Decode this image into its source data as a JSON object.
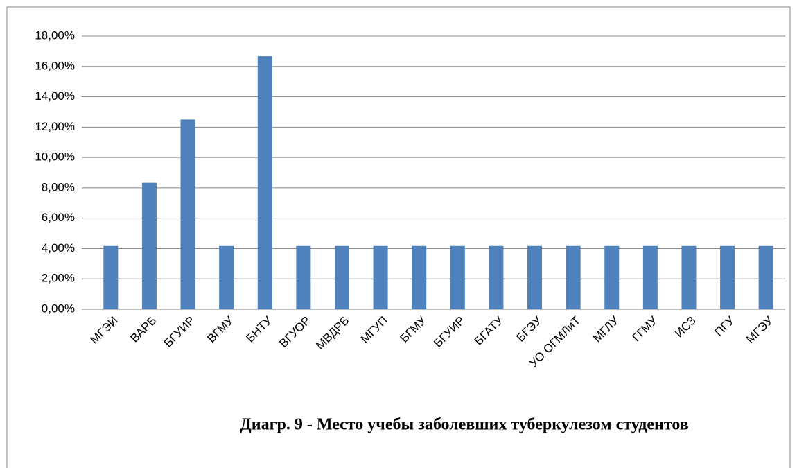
{
  "chart_data": {
    "type": "bar",
    "title": "Диагр. 9 - Место учебы заболевших туберкулезом студентов",
    "categories": [
      "МГЭИ",
      "ВАРБ",
      "БГУИР",
      "ВГМУ",
      "БНТУ",
      "ВГУОР",
      "МВДРБ",
      "МГУП",
      "БГМУ",
      "БГУИР",
      "БГАТУ",
      "БГЭУ",
      "УО ОГМЛиТ",
      "МГЛУ",
      "ГГМУ",
      "ИСЗ",
      "ПГУ",
      "МГЭУ"
    ],
    "values": [
      4.17,
      8.33,
      12.5,
      4.17,
      16.67,
      4.17,
      4.17,
      4.17,
      4.17,
      4.17,
      4.17,
      4.17,
      4.17,
      4.17,
      4.17,
      4.17,
      4.17,
      4.17
    ],
    "color": "#4f81bd",
    "ylim": [
      0,
      18
    ],
    "yticks": [
      {
        "value": 0,
        "label": "0,00%"
      },
      {
        "value": 2,
        "label": "2,00%"
      },
      {
        "value": 4,
        "label": "4,00%"
      },
      {
        "value": 6,
        "label": "6,00%"
      },
      {
        "value": 8,
        "label": "8,00%"
      },
      {
        "value": 10,
        "label": "10,00%"
      },
      {
        "value": 12,
        "label": "12,00%"
      },
      {
        "value": 14,
        "label": "14,00%"
      },
      {
        "value": 16,
        "label": "16,00%"
      },
      {
        "value": 18,
        "label": "18,00%"
      }
    ],
    "grid": true
  }
}
